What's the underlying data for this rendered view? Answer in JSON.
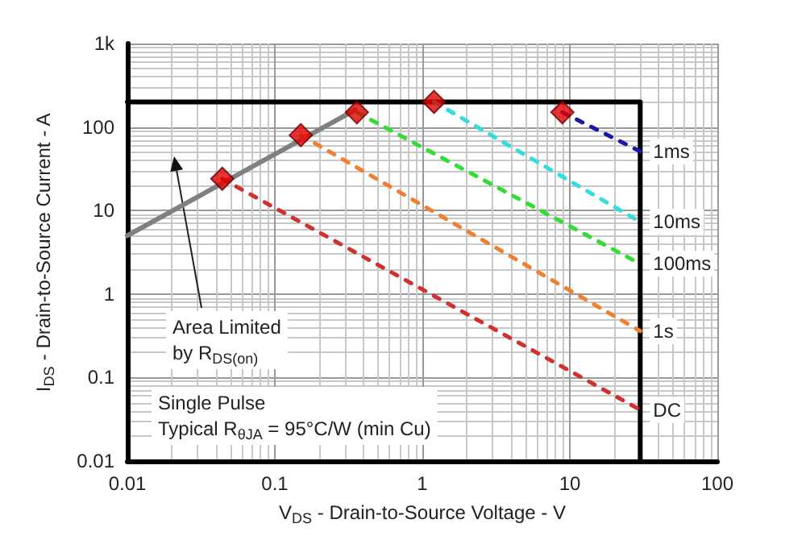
{
  "chart_data": {
    "type": "line",
    "xlabel": "V$_{DS}$ - Drain-to-Source Voltage - V",
    "ylabel": "I$_{DS}$ - Drain-to-Source Current - A",
    "log": "xy",
    "grid": true,
    "legend": false,
    "xlim": [
      0.01,
      100
    ],
    "xticks": [
      0.01,
      0.1,
      1,
      10,
      100
    ],
    "ylim": [
      0.01,
      1000
    ],
    "yticks": [
      0.01,
      0.1,
      1,
      10,
      100,
      {
        "value": 1000,
        "label": "1k"
      }
    ],
    "series": [
      {
        "color": "#000000",
        "line_style": "solid",
        "x": [
          0.01,
          30,
          30
        ],
        "values": [
          200,
          200,
          0.01
        ]
      },
      {
        "color": "#808080",
        "line_style": "solid",
        "x": [
          0.01,
          0.35
        ],
        "values": [
          5,
          160
        ]
      },
      {
        "name": "1ms",
        "color": "#1a1aa0",
        "line_style": "dashed",
        "x": [
          8.9,
          30
        ],
        "values": [
          150,
          51
        ]
      },
      {
        "name": "10ms",
        "color": "#33dddd",
        "line_style": "dashed",
        "x": [
          1.2,
          30
        ],
        "values": [
          200,
          7.3
        ]
      },
      {
        "name": "100ms",
        "color": "#33dd33",
        "line_style": "dashed",
        "x": [
          0.36,
          30
        ],
        "values": [
          150,
          2.3
        ]
      },
      {
        "name": "1s",
        "color": "#f08030",
        "line_style": "dashed",
        "x": [
          0.15,
          30
        ],
        "values": [
          80,
          0.36
        ]
      },
      {
        "name": "DC",
        "color": "#d03030",
        "line_style": "dashed",
        "x": [
          0.044,
          30
        ],
        "values": [
          24,
          0.041
        ]
      },
      {
        "type": "scatter",
        "marker": "diamond",
        "color": "#e00000",
        "x": [
          0.044,
          0.15,
          0.36,
          1.2,
          8.9
        ],
        "values": [
          24,
          80,
          150,
          200,
          150
        ]
      }
    ],
    "annotations": [
      "Area Limited\nby R$_{DS(on)}$",
      "Single Pulse\nTypical R$_{θJA}$ = 95°C/W (min Cu)"
    ]
  }
}
